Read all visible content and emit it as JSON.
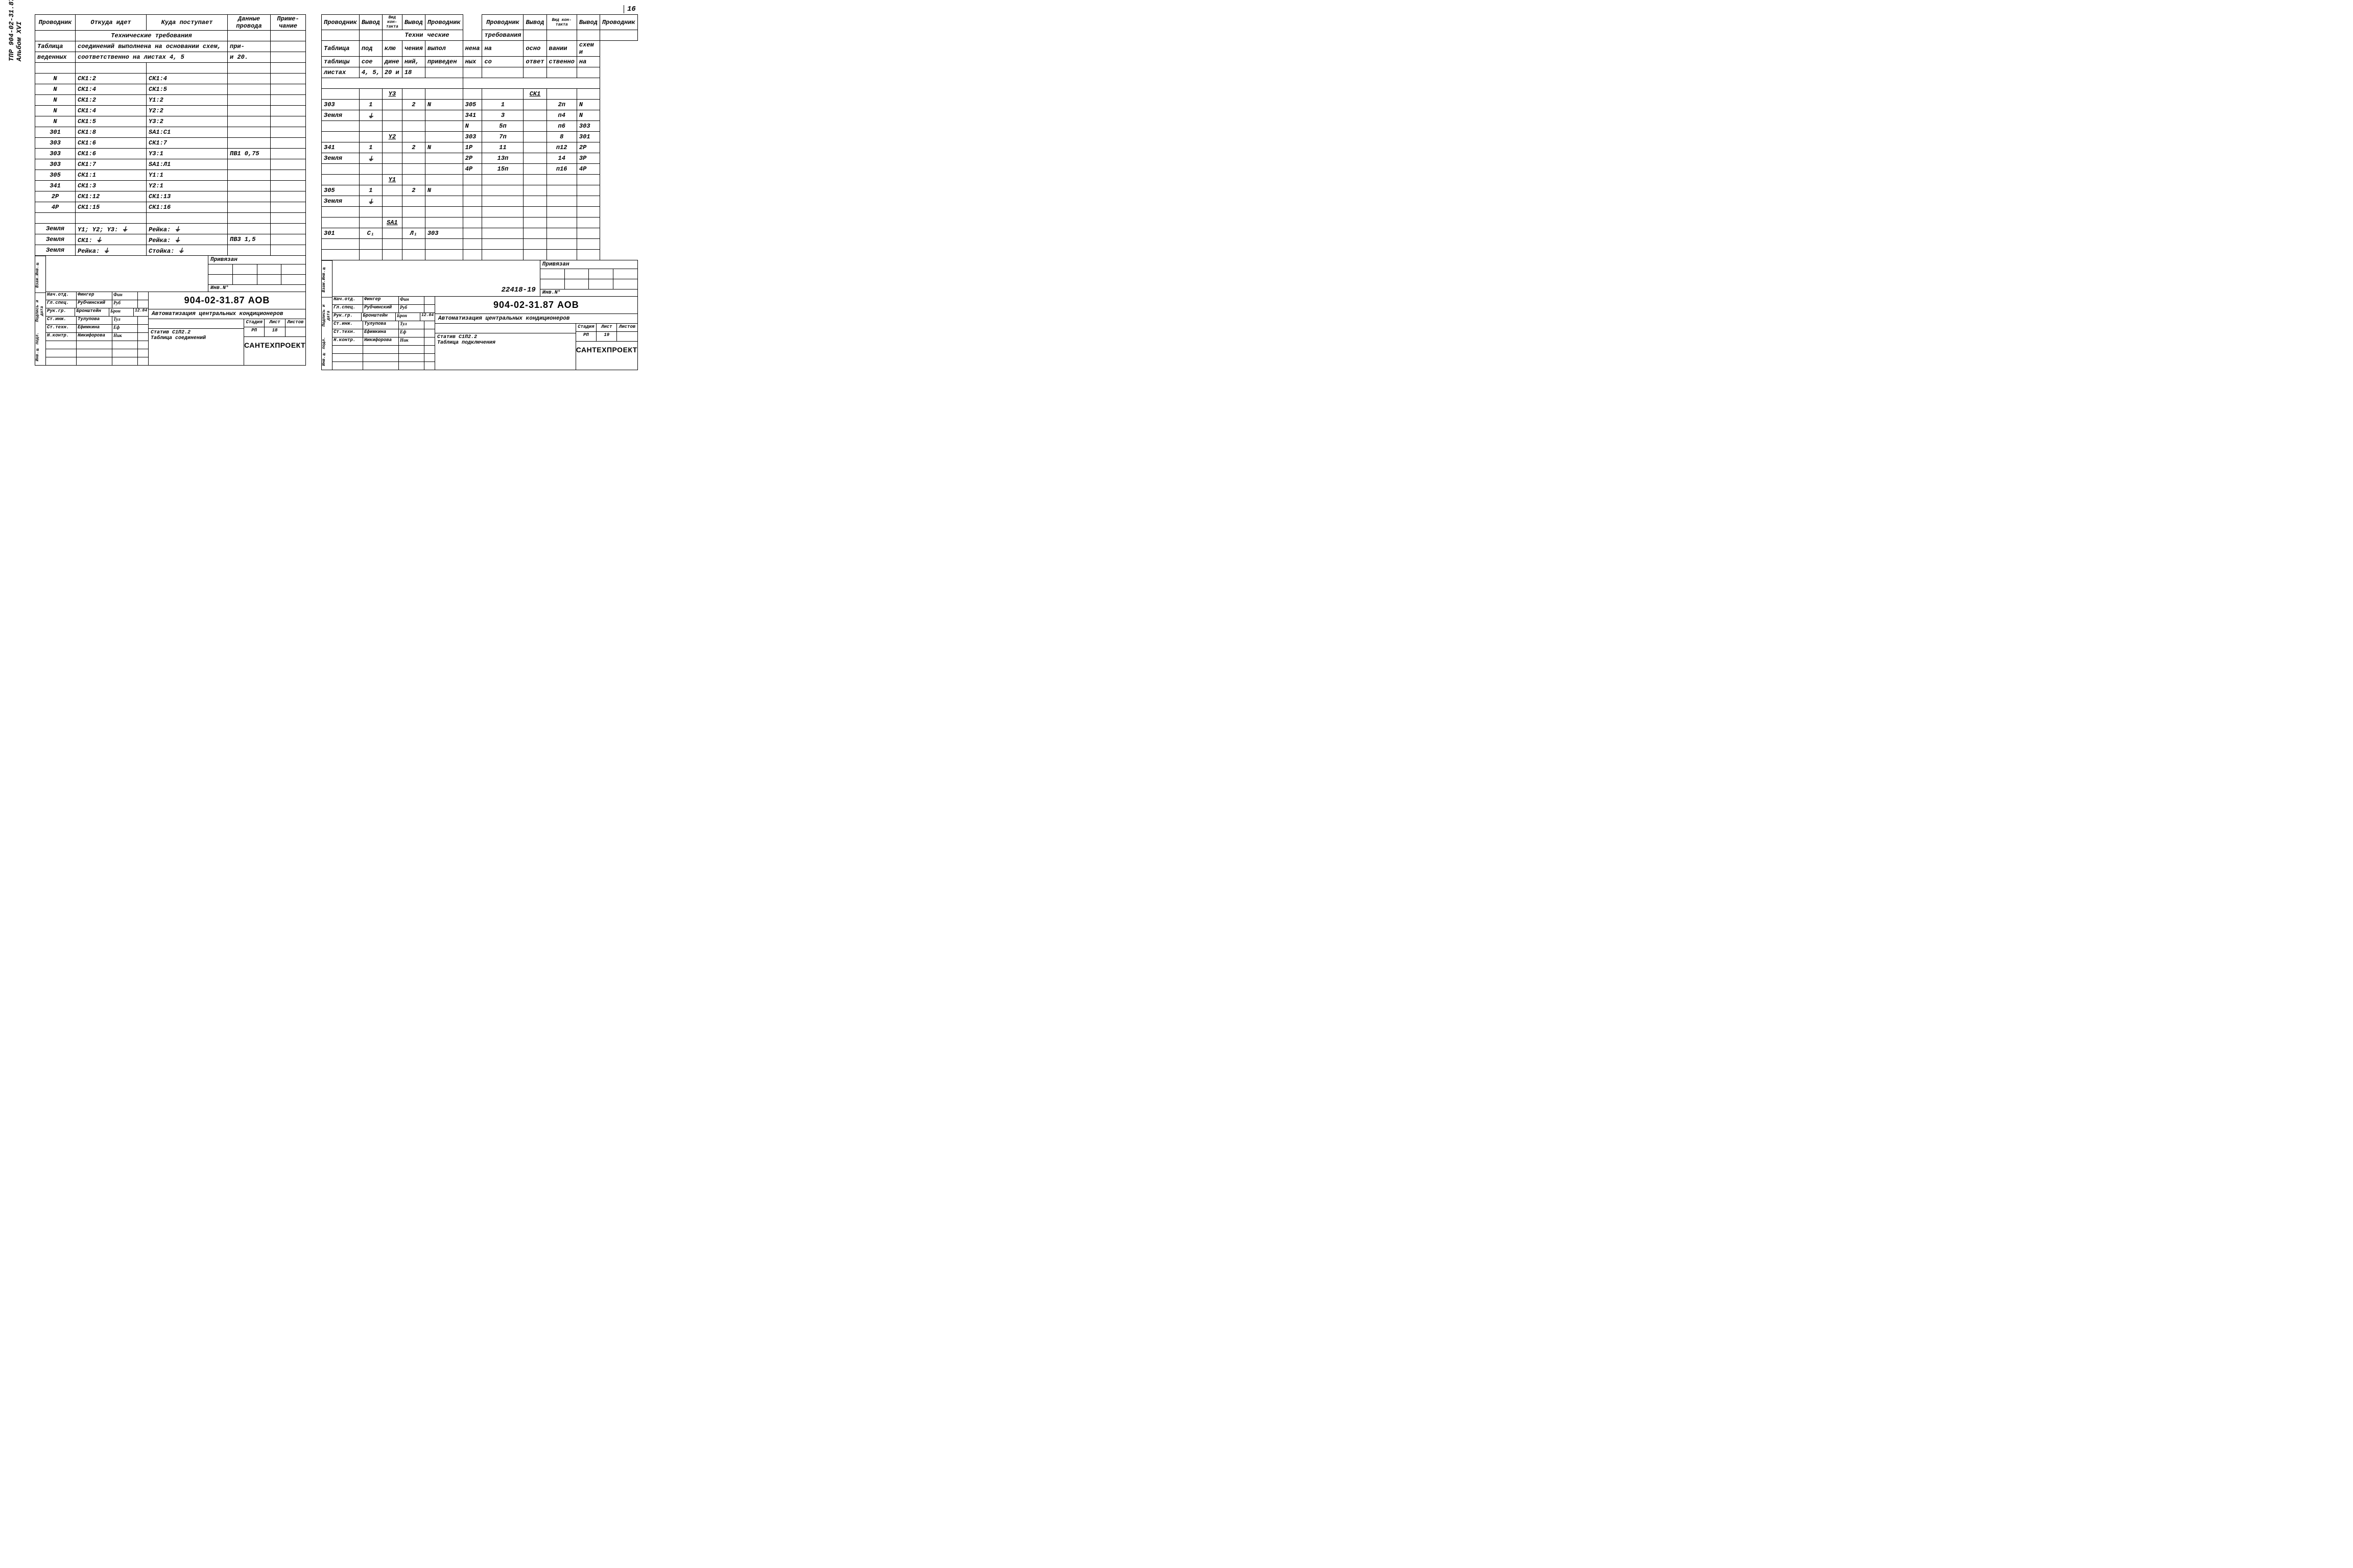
{
  "page_number": "16",
  "vertical_label_1": "ТПР 904-02-31.87",
  "vertical_label_2": "Альбом XVI",
  "left": {
    "headers": {
      "c1": "Проводник",
      "c2": "Откуда идет",
      "c3": "Куда поступает",
      "c4": "Данные провода",
      "c5": "Приме-чание"
    },
    "req_title": "Технические требования",
    "req_line1a": "Таблица",
    "req_line1b": "соединений выполнена на основании схем,",
    "req_line1c": "при-",
    "req_line2a": "веденных",
    "req_line2b": "соответственно на листах 4, 5",
    "req_line2c": "и 20.",
    "rows": [
      {
        "a": "N",
        "b": "СК1:2",
        "c": "СК1:4",
        "d": "",
        "e": ""
      },
      {
        "a": "N",
        "b": "СК1:4",
        "c": "СК1:5",
        "d": "",
        "e": ""
      },
      {
        "a": "N",
        "b": "СК1:2",
        "c": "Y1:2",
        "d": "",
        "e": ""
      },
      {
        "a": "N",
        "b": "СК1:4",
        "c": "Y2:2",
        "d": "",
        "e": ""
      },
      {
        "a": "N",
        "b": "СК1:5",
        "c": "Y3:2",
        "d": "",
        "e": ""
      },
      {
        "a": "301",
        "b": "СК1:8",
        "c": "SA1:C1",
        "d": "",
        "e": ""
      },
      {
        "a": "303",
        "b": "СК1:6",
        "c": "СК1:7",
        "d": "",
        "e": ""
      },
      {
        "a": "303",
        "b": "СК1:6",
        "c": "Y3:1",
        "d": "ПВ1 0,75",
        "e": ""
      },
      {
        "a": "303",
        "b": "СК1:7",
        "c": "SA1:Л1",
        "d": "",
        "e": ""
      },
      {
        "a": "305",
        "b": "СК1:1",
        "c": "Y1:1",
        "d": "",
        "e": ""
      },
      {
        "a": "341",
        "b": "СК1:3",
        "c": "Y2:1",
        "d": "",
        "e": ""
      },
      {
        "a": "2Р",
        "b": "СК1:12",
        "c": "СК1:13",
        "d": "",
        "e": ""
      },
      {
        "a": "4Р",
        "b": "СК1:15",
        "c": "СК1:16",
        "d": "",
        "e": ""
      },
      {
        "a": "",
        "b": "",
        "c": "",
        "d": "",
        "e": ""
      },
      {
        "a": "Земля",
        "b": "Y1; Y2; Y3: ⏚",
        "c": "Рейка: ⏚",
        "d": "",
        "e": ""
      },
      {
        "a": "Земля",
        "b": "СК1: ⏚",
        "c": "Рейка: ⏚",
        "d": "ПВ3 1,5",
        "e": ""
      },
      {
        "a": "Земля",
        "b": "Рейка: ⏚",
        "c": "Стойка: ⏚",
        "d": "",
        "e": ""
      }
    ]
  },
  "right": {
    "headers": {
      "c1": "Проводник",
      "c2": "Вывод",
      "c3": "Вид кон-такта",
      "c4": "Вывод",
      "c5": "Проводник",
      "c6": "Проводник",
      "c7": "Вывод",
      "c8": "Вид кон-такта",
      "c9": "Вывод",
      "c10": "Проводник"
    },
    "req_title_l": "Техни",
    "req_title_r": "ческие",
    "req_title_r2": "требования",
    "line1": [
      "Таблица",
      "под",
      "клю",
      "чения",
      "выпол",
      "нена",
      "на",
      "осно",
      "вании",
      "схем и"
    ],
    "line2": [
      "таблицы",
      "сое",
      "дине",
      "ний,",
      "приведен",
      "ных",
      "со",
      "ответ",
      "ственно",
      "на"
    ],
    "line3": [
      "листах",
      "4, 5,",
      "20 и",
      "18",
      "",
      "",
      "",
      "",
      "",
      ""
    ],
    "groups": [
      {
        "hdr_l": "",
        "hdr_m": "Y3",
        "rows_l": [
          {
            "a": "303",
            "b": "1",
            "c": "",
            "d": "2",
            "e": "N"
          },
          {
            "a": "Земля",
            "b": "⏚",
            "c": "",
            "d": "",
            "e": ""
          }
        ]
      },
      {
        "hdr_l": "",
        "hdr_m": "Y2",
        "rows_l": [
          {
            "a": "341",
            "b": "1",
            "c": "",
            "d": "2",
            "e": "N"
          },
          {
            "a": "Земля",
            "b": "⏚",
            "c": "",
            "d": "",
            "e": ""
          }
        ]
      },
      {
        "hdr_l": "",
        "hdr_m": "Y1",
        "rows_l": [
          {
            "a": "305",
            "b": "1",
            "c": "",
            "d": "2",
            "e": "N"
          },
          {
            "a": "Земля",
            "b": "⏚",
            "c": "",
            "d": "",
            "e": ""
          }
        ]
      },
      {
        "hdr_l": "",
        "hdr_m": "SA1",
        "rows_l": [
          {
            "a": "301",
            "b": "C₁",
            "c": "",
            "d": "Л₁",
            "e": "303"
          }
        ]
      }
    ],
    "right_hdr": "СК1",
    "rows_r": [
      {
        "a": "305",
        "b": "1",
        "c": "",
        "d": "2п",
        "e": "N"
      },
      {
        "a": "341",
        "b": "3",
        "c": "",
        "d": "п4",
        "e": "N"
      },
      {
        "a": "N",
        "b": "5п",
        "c": "",
        "d": "п6",
        "e": "303"
      },
      {
        "a": "303",
        "b": "7п",
        "c": "",
        "d": "8",
        "e": "301"
      },
      {
        "a": "1Р",
        "b": "11",
        "c": "",
        "d": "п12",
        "e": "2Р"
      },
      {
        "a": "2Р",
        "b": "13п",
        "c": "",
        "d": "14",
        "e": "3Р"
      },
      {
        "a": "4Р",
        "b": "15п",
        "c": "",
        "d": "п16",
        "e": "4Р"
      }
    ]
  },
  "title_block": {
    "side_labels": [
      "Взам.Инв.№",
      "Подпись и дата",
      "Инв.№ подл."
    ],
    "privyazan": "Привязан",
    "inv_no": "Инв.N°",
    "archive_right": "22418-19",
    "signatures": [
      {
        "role": "Нач.отд.",
        "name": "Фингер",
        "sign": "Фин",
        "date": ""
      },
      {
        "role": "Гл.спец.",
        "name": "Рубчинский",
        "sign": "Руб",
        "date": ""
      },
      {
        "role": "Рук.гр.",
        "name": "Бронштейн",
        "sign": "Брон",
        "date": "12.84"
      },
      {
        "role": "Ст.инж.",
        "name": "Тулупова",
        "sign": "Тул",
        "date": ""
      },
      {
        "role": "Ст.техн.",
        "name": "Ефимкина",
        "sign": "Еф",
        "date": ""
      },
      {
        "role": "Н.контр.",
        "name": "Никифорова",
        "sign": "Ник",
        "date": ""
      }
    ],
    "doc_num": "904-02-31.87    АОВ",
    "doc_title": "Автоматизация центральных кондиционеров",
    "stage_hdr": [
      "Стадия",
      "Лист",
      "Листов"
    ],
    "stage_val_l": [
      "РП",
      "18",
      ""
    ],
    "stage_val_r": [
      "РП",
      "19",
      ""
    ],
    "statib_l": "Статив С1П2.2\nТаблица соединений",
    "statib_r": "Статив С1П2.2\nТаблица подключения",
    "org": "САНТЕХПРОЕКТ"
  }
}
